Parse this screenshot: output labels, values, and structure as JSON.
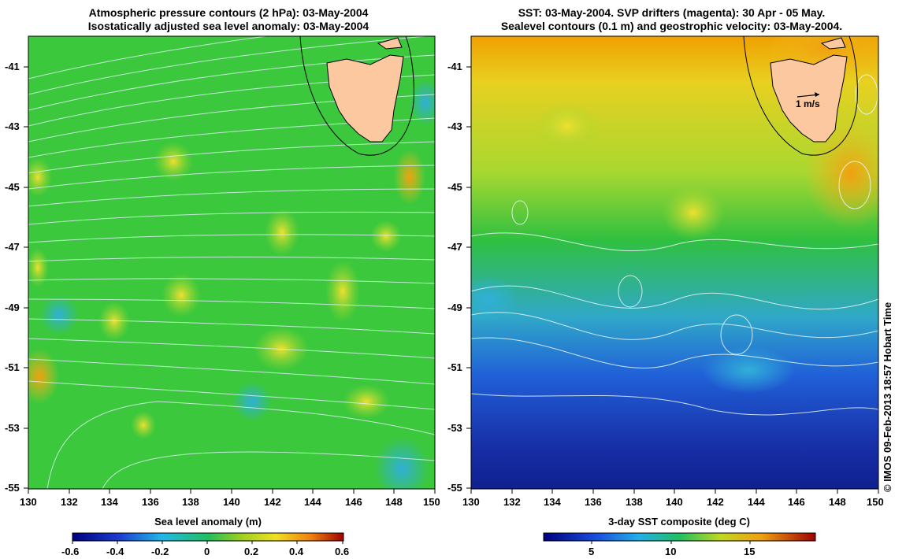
{
  "left_panel": {
    "title_line1": "Atmospheric pressure contours (2 hPa): 03-May-2004",
    "title_line2": "Isostatically adjusted sea level anomaly: 03-May-2004",
    "y_ticks": [
      "-41",
      "-43",
      "-45",
      "-47",
      "-49",
      "-51",
      "-53",
      "-55"
    ],
    "x_ticks": [
      "130",
      "132",
      "134",
      "136",
      "138",
      "140",
      "142",
      "144",
      "146",
      "148",
      "150"
    ],
    "colorbar_label": "Sea level anomaly (m)",
    "colorbar_ticks": [
      "-0.6",
      "-0.4",
      "-0.2",
      "0",
      "0.2",
      "0.4",
      "0.6"
    ]
  },
  "right_panel": {
    "title_line1": "SST: 03-May-2004. SVP drifters (magenta): 30 Apr - 05 May.",
    "title_line2": "Sealevel contours (0.1 m) and geostrophic velocity: 03-May-2004.",
    "y_ticks": [
      "-41",
      "-43",
      "-45",
      "-47",
      "-49",
      "-51",
      "-53",
      "-55"
    ],
    "x_ticks": [
      "130",
      "132",
      "134",
      "136",
      "138",
      "140",
      "142",
      "144",
      "146",
      "148",
      "150"
    ],
    "scale_label": "1 m/s",
    "colorbar_label": "3-day SST composite (deg C)",
    "colorbar_ticks": [
      "5",
      "10",
      "15"
    ]
  },
  "credit": "© IMOS 09-Feb-2013 18:57 Hobart Time",
  "colors": {
    "land": "#fcc8a0",
    "sla_bg": "#3cc83c",
    "sst_warm": "#f0a000",
    "sst_cold": "#1830a8"
  }
}
